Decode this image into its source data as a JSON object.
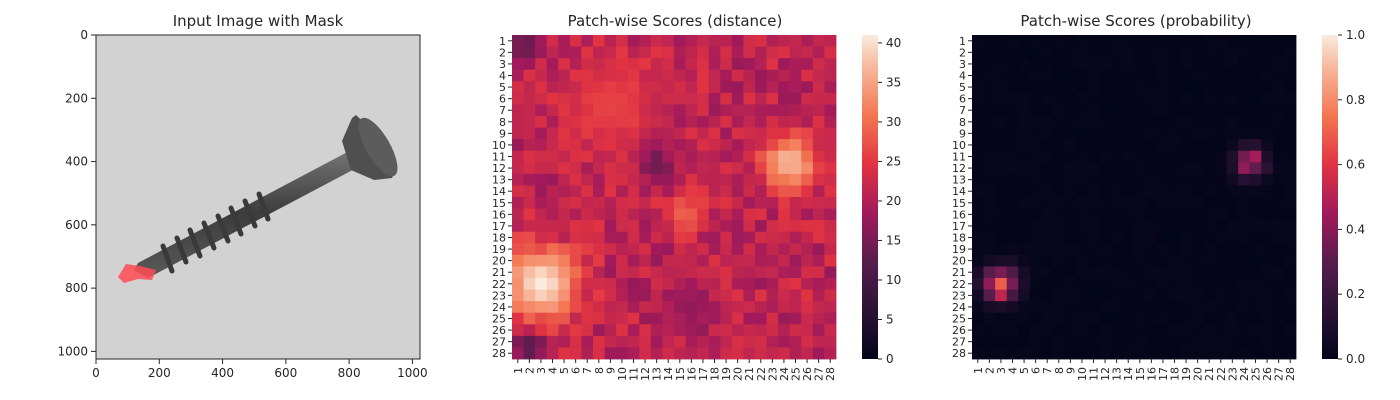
{
  "chart_data": [
    {
      "type": "image",
      "title": "Input Image with Mask",
      "xlim": [
        0,
        1024
      ],
      "ylim": [
        1024,
        0
      ],
      "x_ticks": [
        0,
        200,
        400,
        600,
        800,
        1000
      ],
      "y_ticks": [
        0,
        200,
        400,
        600,
        800,
        1000
      ],
      "image_description_colors": {
        "background": "#d2d2d2",
        "object": "#4a4a4a",
        "mask": "#ff4b55"
      }
    },
    {
      "type": "heatmap",
      "title": "Patch-wise Scores (distance)",
      "grid_size": 28,
      "x_tick_labels": [
        "1",
        "2",
        "3",
        "4",
        "5",
        "6",
        "7",
        "8",
        "9",
        "10",
        "11",
        "12",
        "13",
        "14",
        "15",
        "16",
        "17",
        "18",
        "19",
        "20",
        "21",
        "22",
        "23",
        "24",
        "25",
        "26",
        "27",
        "28"
      ],
      "y_tick_labels": [
        "1",
        "2",
        "3",
        "4",
        "5",
        "6",
        "7",
        "8",
        "9",
        "10",
        "11",
        "12",
        "13",
        "14",
        "15",
        "16",
        "17",
        "18",
        "19",
        "20",
        "21",
        "22",
        "23",
        "24",
        "25",
        "26",
        "27",
        "28"
      ],
      "colorbar": {
        "min": 0,
        "max": 41,
        "ticks": [
          0,
          5,
          10,
          15,
          20,
          25,
          30,
          35,
          40
        ]
      },
      "base_value": 21,
      "hotspots": [
        {
          "col": 3,
          "row": 22,
          "peak": 41,
          "spread": 2.2
        },
        {
          "col": 24.5,
          "row": 11.5,
          "peak": 37,
          "spread": 1.7
        },
        {
          "col": 15.5,
          "row": 16,
          "peak": 29,
          "spread": 1.2
        },
        {
          "col": 9,
          "row": 6.5,
          "peak": 26,
          "spread": 3.0
        }
      ],
      "coldspots": [
        {
          "col": 1.5,
          "row": 1.5,
          "value": 13,
          "spread": 1.0
        },
        {
          "col": 2,
          "row": 27.5,
          "value": 12,
          "spread": 1.0
        },
        {
          "col": 13,
          "row": 11.5,
          "value": 14,
          "spread": 1.0
        },
        {
          "col": 16,
          "row": 24,
          "value": 17,
          "spread": 1.5
        }
      ],
      "colormap": "rocket"
    },
    {
      "type": "heatmap",
      "title": "Patch-wise Scores (probability)",
      "grid_size": 28,
      "x_tick_labels": [
        "1",
        "2",
        "3",
        "4",
        "5",
        "6",
        "7",
        "8",
        "9",
        "10",
        "11",
        "12",
        "13",
        "14",
        "15",
        "16",
        "17",
        "18",
        "19",
        "20",
        "21",
        "22",
        "23",
        "24",
        "25",
        "26",
        "27",
        "28"
      ],
      "y_tick_labels": [
        "1",
        "2",
        "3",
        "4",
        "5",
        "6",
        "7",
        "8",
        "9",
        "10",
        "11",
        "12",
        "13",
        "14",
        "15",
        "16",
        "17",
        "18",
        "19",
        "20",
        "21",
        "22",
        "23",
        "24",
        "25",
        "26",
        "27",
        "28"
      ],
      "colorbar": {
        "min": 0.0,
        "max": 1.0,
        "ticks": [
          0.0,
          0.2,
          0.4,
          0.6,
          0.8,
          1.0
        ]
      },
      "base_value": 0.0,
      "hotspots": [
        {
          "col": 3,
          "row": 22,
          "peak": 0.75,
          "spread": 1.0
        },
        {
          "col": 24.5,
          "row": 11.5,
          "peak": 0.55,
          "spread": 0.9
        }
      ],
      "colormap": "rocket"
    }
  ]
}
